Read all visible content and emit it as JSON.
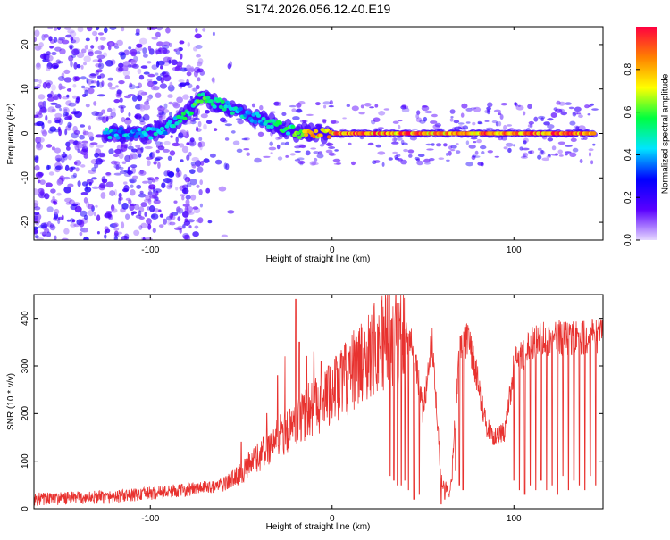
{
  "title": "S174.2026.056.12.40.E19",
  "chart_data": [
    {
      "type": "heatmap",
      "title": "S174.2026.056.12.40.E19",
      "xlabel": "Height of straight line (km)",
      "ylabel": "Frequency (Hz)",
      "xlim": [
        -164,
        149
      ],
      "ylim": [
        -24,
        24
      ],
      "x_ticks": [
        -100,
        0,
        100
      ],
      "x_tick_labels": [
        "-100",
        "0",
        "100"
      ],
      "y_ticks": [
        -20,
        -10,
        0,
        10,
        20
      ],
      "y_tick_labels": [
        "-20",
        "-10",
        "0",
        "10",
        "20"
      ],
      "colorbar": {
        "label": "Normalized spectral amplitude",
        "range": [
          0,
          1
        ],
        "ticks": [
          0.0,
          0.2,
          0.4,
          0.6,
          0.8
        ],
        "tick_labels": [
          "0.0",
          "0.2",
          "0.4",
          "0.6",
          "0.8"
        ],
        "colors": [
          "#e6d9ff",
          "#5a00ff",
          "#0000ff",
          "#00e5ff",
          "#00ff40",
          "#ffff00",
          "#ff8000",
          "#ff0040"
        ]
      },
      "ridge": {
        "description": "dominant frequency track",
        "x": [
          -125,
          -110,
          -100,
          -92,
          -85,
          -78,
          -72,
          -65,
          -58,
          -52,
          -45,
          -38,
          -32,
          -25,
          -18,
          -12,
          -6,
          0,
          10,
          30,
          60,
          100,
          145
        ],
        "freq": [
          0,
          0,
          0,
          1,
          3,
          5,
          8,
          7,
          6,
          5,
          4,
          3,
          2,
          1,
          0,
          0.5,
          0,
          0,
          0,
          0,
          0,
          0,
          0
        ],
        "amplitude": [
          0.45,
          0.4,
          0.45,
          0.4,
          0.5,
          0.55,
          0.6,
          0.5,
          0.5,
          0.45,
          0.45,
          0.45,
          0.5,
          0.55,
          0.65,
          0.75,
          0.8,
          0.85,
          0.9,
          0.9,
          0.85,
          0.9,
          0.9
        ]
      },
      "noise_region": {
        "x_from": -164,
        "x_to": -55,
        "amplitude": 0.15
      }
    },
    {
      "type": "line",
      "xlabel": "Height of straight line (km)",
      "ylabel": "SNR (10 * v/v)",
      "xlim": [
        -164,
        149
      ],
      "ylim": [
        0,
        450
      ],
      "x_ticks": [
        -100,
        0,
        100
      ],
      "x_tick_labels": [
        "-100",
        "0",
        "100"
      ],
      "y_ticks": [
        0,
        100,
        200,
        300,
        400
      ],
      "y_tick_labels": [
        "0",
        "100",
        "200",
        "300",
        "400"
      ],
      "series": [
        {
          "name": "SNR",
          "color": "#e8322f",
          "envelope_x": [
            -164,
            -120,
            -80,
            -60,
            -50,
            -40,
            -30,
            -20,
            -10,
            0,
            10,
            20,
            30,
            40,
            45,
            50,
            55,
            60,
            65,
            70,
            75,
            80,
            85,
            90,
            95,
            100,
            110,
            120,
            130,
            149
          ],
          "envelope_y": [
            20,
            25,
            40,
            50,
            75,
            110,
            150,
            180,
            220,
            240,
            280,
            330,
            360,
            370,
            340,
            200,
            360,
            60,
            30,
            330,
            360,
            270,
            170,
            150,
            160,
            300,
            350,
            360,
            360,
            365
          ],
          "spikes_x": [
            -50,
            -46,
            -42,
            -36,
            -30,
            -26,
            -20,
            -18,
            -14,
            -10,
            -6,
            -2,
            2,
            6,
            10,
            14,
            18,
            22,
            26,
            30
          ],
          "spikes_y": [
            140,
            120,
            130,
            200,
            280,
            320,
            440,
            350,
            320,
            330,
            310,
            300,
            320,
            320,
            340,
            350,
            330,
            370,
            370,
            380
          ],
          "dips_x": [
            32,
            34,
            36,
            38,
            40,
            42,
            45,
            48,
            60,
            62,
            64,
            66,
            68,
            70,
            72,
            100,
            103,
            106,
            109,
            112,
            115,
            118,
            121,
            124,
            127,
            130,
            133,
            136,
            139,
            142,
            145
          ],
          "dips_y": [
            70,
            60,
            50,
            50,
            60,
            40,
            20,
            30,
            10,
            20,
            30,
            60,
            80,
            50,
            40,
            60,
            40,
            30,
            50,
            40,
            60,
            40,
            50,
            30,
            70,
            40,
            60,
            50,
            40,
            70,
            50
          ]
        }
      ]
    }
  ]
}
